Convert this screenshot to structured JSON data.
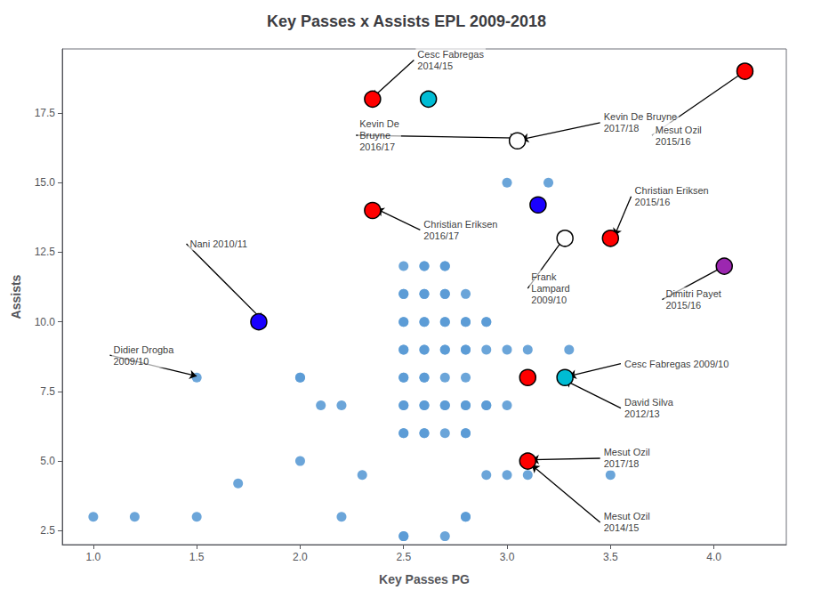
{
  "chart_data": {
    "type": "scatter",
    "title": "Key Passes x Assists EPL 2009-2018",
    "xlabel": "Key Passes PG",
    "ylabel": "Assists",
    "xlim": [
      0.85,
      4.35
    ],
    "ylim": [
      2.0,
      19.8
    ],
    "xticks": [
      {
        "value": 1,
        "label": "1.0"
      },
      1.5,
      {
        "value": 2,
        "label": "2.0"
      },
      2.5,
      {
        "value": 3,
        "label": "3.0"
      },
      3.5,
      {
        "value": 4,
        "label": "4.0"
      }
    ],
    "yticks": [
      2.5,
      {
        "value": 5,
        "label": "5.0"
      },
      7.5,
      {
        "value": 10,
        "label": "10.0"
      },
      12.5,
      {
        "value": 15,
        "label": "15.0"
      },
      17.5
    ],
    "grid": false,
    "series": [
      {
        "color": "#5b9bd5",
        "values": [
          [
            1.0,
            3.0
          ],
          [
            1.2,
            3.0
          ],
          [
            1.5,
            3.0
          ],
          [
            1.5,
            8.0
          ],
          [
            1.7,
            4.2
          ],
          [
            2.0,
            5.0
          ],
          [
            2.0,
            8.0
          ],
          [
            2.0,
            8.0
          ],
          [
            2.1,
            7.0
          ],
          [
            2.2,
            3.0
          ],
          [
            2.2,
            7.0
          ],
          [
            2.3,
            4.5
          ],
          [
            2.5,
            2.3
          ],
          [
            2.5,
            2.3
          ],
          [
            2.5,
            6.0
          ],
          [
            2.5,
            6.0
          ],
          [
            2.5,
            7.0
          ],
          [
            2.5,
            7.0
          ],
          [
            2.5,
            8.0
          ],
          [
            2.5,
            8.0
          ],
          [
            2.5,
            9.0
          ],
          [
            2.5,
            9.0
          ],
          [
            2.5,
            10.0
          ],
          [
            2.5,
            10.0
          ],
          [
            2.5,
            11.0
          ],
          [
            2.5,
            11.0
          ],
          [
            2.5,
            12.0
          ],
          [
            2.6,
            6.0
          ],
          [
            2.6,
            6.0
          ],
          [
            2.6,
            7.0
          ],
          [
            2.6,
            7.0
          ],
          [
            2.6,
            8.0
          ],
          [
            2.6,
            8.0
          ],
          [
            2.6,
            9.0
          ],
          [
            2.6,
            9.0
          ],
          [
            2.6,
            10.0
          ],
          [
            2.6,
            10.0
          ],
          [
            2.6,
            11.0
          ],
          [
            2.6,
            11.0
          ],
          [
            2.6,
            12.0
          ],
          [
            2.6,
            12.0
          ],
          [
            2.7,
            2.3
          ],
          [
            2.7,
            6.0
          ],
          [
            2.7,
            7.0
          ],
          [
            2.7,
            7.0
          ],
          [
            2.7,
            8.0
          ],
          [
            2.7,
            9.0
          ],
          [
            2.7,
            9.0
          ],
          [
            2.7,
            10.0
          ],
          [
            2.7,
            10.0
          ],
          [
            2.7,
            11.0
          ],
          [
            2.7,
            11.0
          ],
          [
            2.7,
            12.0
          ],
          [
            2.7,
            12.0
          ],
          [
            2.8,
            3.0
          ],
          [
            2.8,
            3.0
          ],
          [
            2.8,
            6.0
          ],
          [
            2.8,
            6.0
          ],
          [
            2.8,
            7.0
          ],
          [
            2.8,
            7.0
          ],
          [
            2.8,
            8.0
          ],
          [
            2.8,
            9.0
          ],
          [
            2.8,
            9.0
          ],
          [
            2.8,
            10.0
          ],
          [
            2.8,
            10.0
          ],
          [
            2.8,
            11.0
          ],
          [
            2.9,
            4.5
          ],
          [
            2.9,
            7.0
          ],
          [
            2.9,
            7.0
          ],
          [
            2.9,
            9.0
          ],
          [
            2.9,
            10.0
          ],
          [
            2.9,
            10.0
          ],
          [
            3.0,
            4.5
          ],
          [
            3.0,
            7.0
          ],
          [
            3.0,
            9.0
          ],
          [
            3.0,
            15.0
          ],
          [
            3.1,
            4.5
          ],
          [
            3.1,
            9.0
          ],
          [
            3.2,
            15.0
          ],
          [
            3.3,
            9.0
          ],
          [
            3.5,
            4.5
          ]
        ]
      },
      {
        "colors": [
          "#ff0000",
          "#ff0000",
          "#00bcd4",
          "#ffffff",
          "#1a00ff",
          "#ffffff",
          "#ff0000",
          "#ff0000",
          "#1a00ff",
          "#ff0000",
          "#00bcd4",
          "#ff0000",
          "#9c27b0"
        ],
        "values": [
          [
            4.15,
            19.0
          ],
          [
            2.35,
            18.0
          ],
          [
            2.62,
            18.0
          ],
          [
            3.05,
            16.5
          ],
          [
            3.15,
            14.2
          ],
          [
            3.28,
            13.0
          ],
          [
            3.5,
            13.0
          ],
          [
            2.35,
            14.0
          ],
          [
            1.8,
            10.0
          ],
          [
            3.1,
            8.0
          ],
          [
            3.28,
            8.0
          ],
          [
            3.1,
            5.0
          ],
          [
            4.05,
            12.0
          ]
        ]
      }
    ],
    "annotations": [
      {
        "text": "Cesc Fabregas\n2014/15",
        "xy": [
          2.35,
          18.05
        ],
        "xytext": [
          2.55,
          19.4
        ]
      },
      {
        "text": "Kevin De\nBruyne\n2016/17",
        "xy": [
          3.05,
          16.6
        ],
        "xytext": [
          2.27,
          16.7
        ]
      },
      {
        "text": "Kevin De Bruyne\n2017/18",
        "xy": [
          3.07,
          16.55
        ],
        "xytext": [
          3.45,
          17.15
        ]
      },
      {
        "text": "Mesut Ozil\n2015/16",
        "xy": [
          4.15,
          19.0
        ],
        "xytext": [
          3.7,
          16.7
        ]
      },
      {
        "text": "Christian Eriksen\n2016/17",
        "xy": [
          2.37,
          14.05
        ],
        "xytext": [
          2.58,
          13.3
        ]
      },
      {
        "text": "Nani 2010/11",
        "xy": [
          1.82,
          10.05
        ],
        "xytext": [
          1.45,
          12.8
        ]
      },
      {
        "text": "Didier Drogba\n2009/10",
        "xy": [
          1.5,
          8.05
        ],
        "xytext": [
          1.08,
          8.8
        ]
      },
      {
        "text": "Christian Eriksen\n2015/16",
        "xy": [
          3.52,
          13.1
        ],
        "xytext": [
          3.6,
          14.5
        ]
      },
      {
        "text": "Frank\nLampard\n2009/10",
        "xy": [
          3.28,
          13.05
        ],
        "xytext": [
          3.1,
          11.2
        ]
      },
      {
        "text": "Dimitri Payet\n2015/16",
        "xy": [
          4.05,
          12.0
        ],
        "xytext": [
          3.75,
          10.8
        ]
      },
      {
        "text": "Cesc Fabregas 2009/10",
        "xy": [
          3.3,
          8.05
        ],
        "xytext": [
          3.55,
          8.5
        ]
      },
      {
        "text": "David Silva\n2012/13",
        "xy": [
          3.28,
          7.9
        ],
        "xytext": [
          3.55,
          6.9
        ]
      },
      {
        "text": "Mesut Ozil\n2017/18",
        "xy": [
          3.12,
          5.05
        ],
        "xytext": [
          3.45,
          5.1
        ]
      },
      {
        "text": "Mesut Ozil\n2014/15",
        "xy": [
          3.12,
          4.85
        ],
        "xytext": [
          3.45,
          2.8
        ]
      }
    ]
  }
}
